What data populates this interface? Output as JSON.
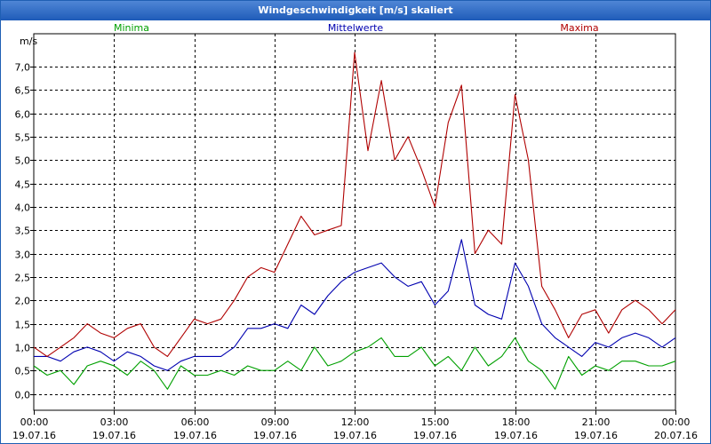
{
  "window": {
    "title": "Windgeschwindigkeit [m/s] skaliert"
  },
  "chart_data": {
    "type": "line",
    "title": "Windgeschwindigkeit [m/s] skaliert",
    "ylabel": "m/s",
    "ylim": [
      -0.35,
      7.7
    ],
    "y_ticks": [
      "0,0",
      "0,5",
      "1,0",
      "1,5",
      "2,0",
      "2,5",
      "3,0",
      "3,5",
      "4,0",
      "4,5",
      "5,0",
      "5,5",
      "6,0",
      "6,5",
      "7,0"
    ],
    "y_tick_values": [
      0,
      0.5,
      1,
      1.5,
      2,
      2.5,
      3,
      3.5,
      4,
      4.5,
      5,
      5.5,
      6,
      6.5,
      7
    ],
    "xlim": [
      0,
      24
    ],
    "x_ticks": [
      {
        "time": "00:00",
        "date": "19.07.16"
      },
      {
        "time": "03:00",
        "date": "19.07.16"
      },
      {
        "time": "06:00",
        "date": "19.07.16"
      },
      {
        "time": "09:00",
        "date": "19.07.16"
      },
      {
        "time": "12:00",
        "date": "19.07.16"
      },
      {
        "time": "15:00",
        "date": "19.07.16"
      },
      {
        "time": "18:00",
        "date": "19.07.16"
      },
      {
        "time": "21:00",
        "date": "19.07.16"
      },
      {
        "time": "00:00",
        "date": "20.07.16"
      }
    ],
    "x_tick_values": [
      0,
      3,
      6,
      9,
      12,
      15,
      18,
      21,
      24
    ],
    "grid": true,
    "series": [
      {
        "name": "Minima",
        "color": "#00a000",
        "x": [
          0,
          0.5,
          1,
          1.5,
          2,
          2.5,
          3,
          3.5,
          4,
          4.5,
          5,
          5.5,
          6,
          6.5,
          7,
          7.5,
          8,
          8.5,
          9,
          9.5,
          10,
          10.5,
          11,
          11.5,
          12,
          12.5,
          13,
          13.5,
          14,
          14.5,
          15,
          15.5,
          16,
          16.5,
          17,
          17.5,
          18,
          18.5,
          19,
          19.5,
          20,
          20.5,
          21,
          21.5,
          22,
          22.5,
          23,
          23.5,
          24
        ],
        "values": [
          0.6,
          0.4,
          0.5,
          0.2,
          0.6,
          0.7,
          0.6,
          0.4,
          0.7,
          0.5,
          0.1,
          0.6,
          0.4,
          0.4,
          0.5,
          0.4,
          0.6,
          0.5,
          0.5,
          0.7,
          0.5,
          1.0,
          0.6,
          0.7,
          0.9,
          1.0,
          1.2,
          0.8,
          0.8,
          1.0,
          0.6,
          0.8,
          0.5,
          1.0,
          0.6,
          0.8,
          1.2,
          0.7,
          0.5,
          0.1,
          0.8,
          0.4,
          0.6,
          0.5,
          0.7,
          0.7,
          0.6,
          0.6,
          0.7
        ]
      },
      {
        "name": "Mittelwerte",
        "color": "#0000b0",
        "x": [
          0,
          0.5,
          1,
          1.5,
          2,
          2.5,
          3,
          3.5,
          4,
          4.5,
          5,
          5.5,
          6,
          6.5,
          7,
          7.5,
          8,
          8.5,
          9,
          9.5,
          10,
          10.5,
          11,
          11.5,
          12,
          12.5,
          13,
          13.5,
          14,
          14.5,
          15,
          15.5,
          16,
          16.5,
          17,
          17.5,
          18,
          18.5,
          19,
          19.5,
          20,
          20.5,
          21,
          21.5,
          22,
          22.5,
          23,
          23.5,
          24
        ],
        "values": [
          0.8,
          0.8,
          0.7,
          0.9,
          1.0,
          0.9,
          0.7,
          0.9,
          0.8,
          0.6,
          0.5,
          0.7,
          0.8,
          0.8,
          0.8,
          1.0,
          1.4,
          1.4,
          1.5,
          1.4,
          1.9,
          1.7,
          2.1,
          2.4,
          2.6,
          2.7,
          2.8,
          2.5,
          2.3,
          2.4,
          1.9,
          2.2,
          3.3,
          1.9,
          1.7,
          1.6,
          2.8,
          2.3,
          1.5,
          1.2,
          1.0,
          0.8,
          1.1,
          1.0,
          1.2,
          1.3,
          1.2,
          1.0,
          1.2
        ]
      },
      {
        "name": "Maxima",
        "color": "#b00000",
        "x": [
          0,
          0.5,
          1,
          1.5,
          2,
          2.5,
          3,
          3.5,
          4,
          4.5,
          5,
          5.5,
          6,
          6.5,
          7,
          7.5,
          8,
          8.5,
          9,
          9.5,
          10,
          10.5,
          11,
          11.5,
          12,
          12.5,
          13,
          13.5,
          14,
          14.5,
          15,
          15.5,
          16,
          16.5,
          17,
          17.5,
          18,
          18.5,
          19,
          19.5,
          20,
          20.5,
          21,
          21.5,
          22,
          22.5,
          23,
          23.5,
          24
        ],
        "values": [
          1.0,
          0.8,
          1.0,
          1.2,
          1.5,
          1.3,
          1.2,
          1.4,
          1.5,
          1.0,
          0.8,
          1.2,
          1.6,
          1.5,
          1.6,
          2.0,
          2.5,
          2.7,
          2.6,
          3.2,
          3.8,
          3.4,
          3.5,
          3.6,
          7.3,
          5.2,
          6.7,
          5.0,
          5.5,
          4.8,
          4.0,
          5.8,
          6.6,
          3.0,
          3.5,
          3.2,
          6.4,
          5.0,
          2.3,
          1.8,
          1.2,
          1.7,
          1.8,
          1.3,
          1.8,
          2.0,
          1.8,
          1.5,
          1.8
        ]
      }
    ]
  }
}
